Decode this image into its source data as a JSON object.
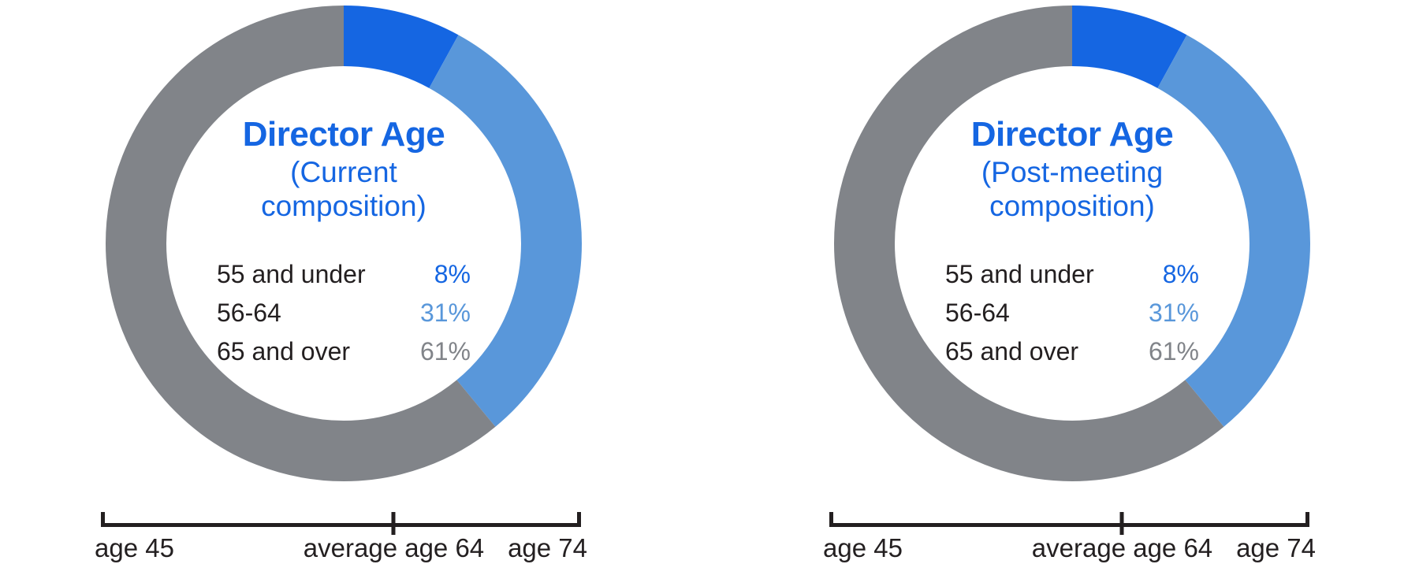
{
  "page": {
    "background": "#FFFFFF",
    "text_color": "#231F20"
  },
  "chart_data": [
    {
      "type": "pie",
      "donut": true,
      "title": "Director Age",
      "title_color": "#1566E2",
      "subtitle": "(Current composition)",
      "categories": [
        "55 and under",
        "56-64",
        "65 and over"
      ],
      "values": [
        8,
        31,
        61
      ],
      "value_labels": [
        "8%",
        "31%",
        "61%"
      ],
      "colors": [
        "#1566E2",
        "#5997DA",
        "#818489"
      ],
      "start_angle": "12-oclock",
      "direction": "clockwise",
      "legend_position": "center-of-donut",
      "axis": {
        "left_label": "age 45",
        "middle_label": "average age 64",
        "right_label": "age 74",
        "left_value": 45,
        "middle_value": 64,
        "right_value": 74,
        "middle_fraction": 0.61
      }
    },
    {
      "type": "pie",
      "donut": true,
      "title": "Director Age",
      "title_color": "#1566E2",
      "subtitle": "(Post-meeting composition)",
      "categories": [
        "55 and under",
        "56-64",
        "65 and over"
      ],
      "values": [
        8,
        31,
        61
      ],
      "value_labels": [
        "8%",
        "31%",
        "61%"
      ],
      "colors": [
        "#1566E2",
        "#5997DA",
        "#818489"
      ],
      "start_angle": "12-oclock",
      "direction": "clockwise",
      "legend_position": "center-of-donut",
      "axis": {
        "left_label": "age 45",
        "middle_label": "average age 64",
        "right_label": "age 74",
        "left_value": 45,
        "middle_value": 64,
        "right_value": 74,
        "middle_fraction": 0.61
      }
    }
  ]
}
